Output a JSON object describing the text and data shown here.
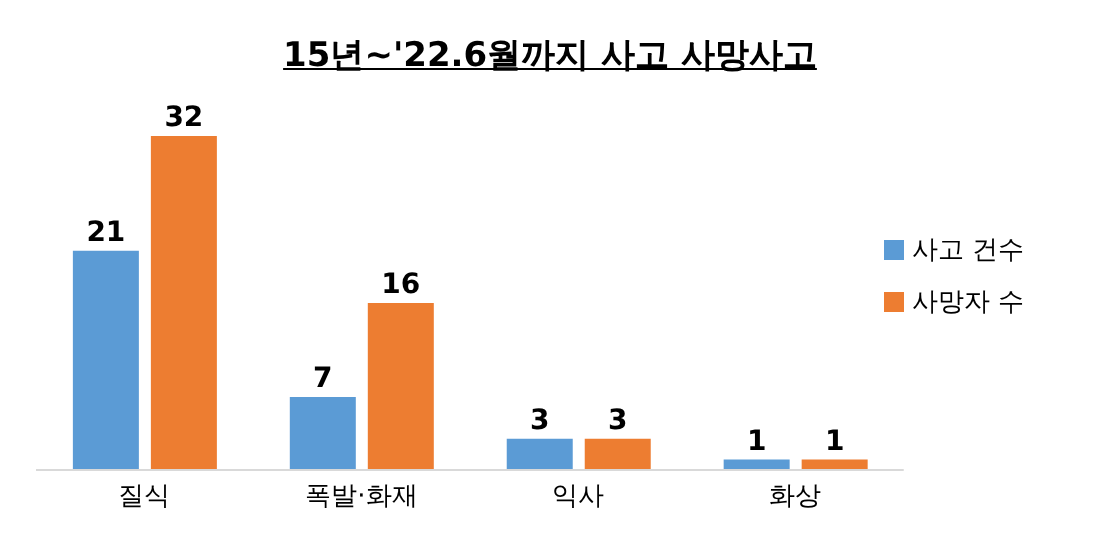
{
  "chart_data": {
    "type": "bar",
    "title": "15년~'22.6월까지 사고 사망사고",
    "categories": [
      "질식",
      "폭발·화재",
      "익사",
      "화상"
    ],
    "series": [
      {
        "name": "사고 건수",
        "color": "#5b9bd5",
        "values": [
          21,
          7,
          3,
          1
        ]
      },
      {
        "name": "사망자 수",
        "color": "#ed7d31",
        "values": [
          32,
          16,
          3,
          1
        ]
      }
    ],
    "data_labels": true,
    "legend": "top right",
    "grid": false
  }
}
